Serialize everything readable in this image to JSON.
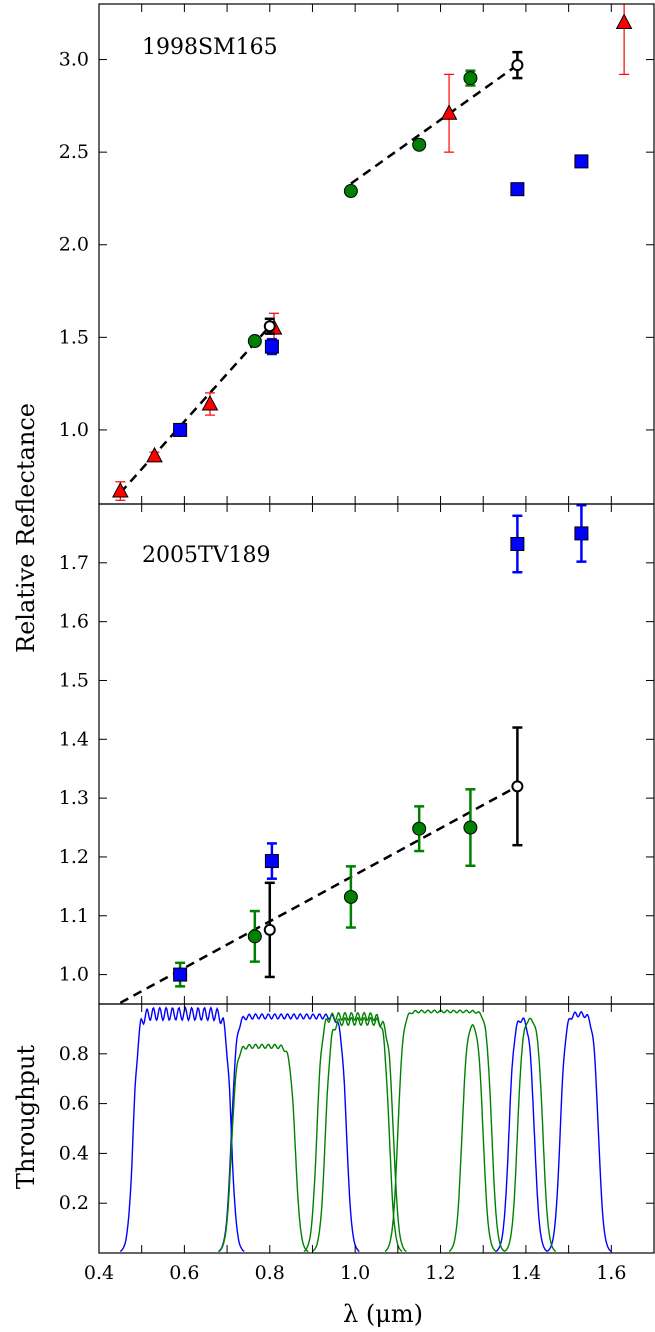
{
  "chart_data": [
    {
      "type": "scatter",
      "panel": "top",
      "label": "1998SM165",
      "xlim": [
        0.4,
        1.7
      ],
      "ylim": [
        0.6,
        3.3
      ],
      "yticks": [
        1.0,
        1.5,
        2.0,
        2.5,
        3.0
      ],
      "ytick_labels": [
        "1.0",
        "1.5",
        "2.0",
        "2.5",
        "3.0"
      ],
      "fit_lines": [
        {
          "x": [
            0.45,
            0.8
          ],
          "y": [
            0.66,
            1.56
          ]
        },
        {
          "x": [
            0.99,
            1.38
          ],
          "y": [
            2.33,
            2.97
          ]
        }
      ],
      "series": [
        {
          "marker": "triangle",
          "color": "#ff0000",
          "points": [
            {
              "x": 0.45,
              "y": 0.67,
              "err": 0.05
            },
            {
              "x": 0.53,
              "y": 0.86,
              "err": 0.02
            },
            {
              "x": 0.66,
              "y": 1.14,
              "err": 0.06
            },
            {
              "x": 0.81,
              "y": 1.55,
              "err": 0.08
            },
            {
              "x": 1.22,
              "y": 2.71,
              "err": 0.21
            },
            {
              "x": 1.63,
              "y": 3.2,
              "err": 0.28
            }
          ]
        },
        {
          "marker": "circle",
          "color": "#008000",
          "points": [
            {
              "x": 0.59,
              "y": 1.0,
              "err": 0.02
            },
            {
              "x": 0.765,
              "y": 1.48,
              "err": 0.02
            },
            {
              "x": 0.99,
              "y": 2.29,
              "err": 0.02
            },
            {
              "x": 1.15,
              "y": 2.54,
              "err": 0.02
            },
            {
              "x": 1.27,
              "y": 2.9,
              "err": 0.04
            }
          ]
        },
        {
          "marker": "square",
          "color": "#0000ff",
          "points": [
            {
              "x": 0.59,
              "y": 1.0,
              "err": 0.0
            },
            {
              "x": 0.805,
              "y": 1.45,
              "err": 0.04
            },
            {
              "x": 1.38,
              "y": 2.3,
              "err": 0.0
            },
            {
              "x": 1.53,
              "y": 2.45,
              "err": 0.0
            }
          ]
        },
        {
          "marker": "open-circle",
          "color": "#000000",
          "points": [
            {
              "x": 0.8,
              "y": 1.56,
              "err": 0.04
            },
            {
              "x": 1.38,
              "y": 2.97,
              "err": 0.07
            }
          ]
        }
      ]
    },
    {
      "type": "scatter",
      "panel": "middle",
      "label": "2005TV189",
      "xlim": [
        0.4,
        1.7
      ],
      "ylim": [
        0.95,
        1.8
      ],
      "yticks": [
        1.0,
        1.1,
        1.2,
        1.3,
        1.4,
        1.5,
        1.6,
        1.7
      ],
      "ytick_labels": [
        "1.0",
        "1.1",
        "1.2",
        "1.3",
        "1.4",
        "1.5",
        "1.6",
        "1.7"
      ],
      "fit_lines": [
        {
          "x": [
            0.45,
            1.38
          ],
          "y": [
            0.952,
            1.32
          ]
        }
      ],
      "series": [
        {
          "marker": "circle",
          "color": "#008000",
          "points": [
            {
              "x": 0.59,
              "y": 1.0,
              "err": 0.02
            },
            {
              "x": 0.765,
              "y": 1.065,
              "err": 0.043
            },
            {
              "x": 0.99,
              "y": 1.132,
              "err": 0.052
            },
            {
              "x": 1.15,
              "y": 1.248,
              "err": 0.038
            },
            {
              "x": 1.27,
              "y": 1.25,
              "err": 0.065
            }
          ]
        },
        {
          "marker": "square",
          "color": "#0000ff",
          "points": [
            {
              "x": 0.59,
              "y": 1.0,
              "err": 0.0
            },
            {
              "x": 0.805,
              "y": 1.193,
              "err": 0.03
            },
            {
              "x": 1.38,
              "y": 1.732,
              "err": 0.048
            },
            {
              "x": 1.53,
              "y": 1.75,
              "err": 0.048
            }
          ]
        },
        {
          "marker": "open-circle",
          "color": "#000000",
          "points": [
            {
              "x": 0.8,
              "y": 1.076,
              "err": 0.08
            },
            {
              "x": 1.38,
              "y": 1.32,
              "err": 0.1
            }
          ]
        }
      ]
    },
    {
      "type": "line",
      "panel": "bottom",
      "ylabel": "Throughput",
      "xlabel": "λ (μm)",
      "xlim": [
        0.4,
        1.7
      ],
      "ylim": [
        0.0,
        1.0
      ],
      "xticks": [
        0.4,
        0.6,
        0.8,
        1.0,
        1.2,
        1.4,
        1.6
      ],
      "xtick_labels": [
        "0.4",
        "0.6",
        "0.8",
        "1.0",
        "1.2",
        "1.4",
        "1.6"
      ],
      "yticks": [
        0.2,
        0.4,
        0.6,
        0.8
      ],
      "ytick_labels": [
        "0.2",
        "0.4",
        "0.6",
        "0.8"
      ],
      "bands": [
        {
          "color": "#0000ff",
          "start": 0.48,
          "end": 0.71,
          "level": 0.96,
          "ripple": 0.025
        },
        {
          "color": "#0000ff",
          "start": 0.71,
          "end": 0.98,
          "level": 0.95,
          "ripple": 0.01
        },
        {
          "color": "#0000ff",
          "start": 1.36,
          "end": 1.42,
          "level": 0.95,
          "ripple": 0.01
        },
        {
          "color": "#0000ff",
          "start": 1.48,
          "end": 1.57,
          "level": 0.96,
          "ripple": 0.01
        },
        {
          "color": "#008000",
          "start": 0.71,
          "end": 0.86,
          "level": 0.83,
          "ripple": 0.008
        },
        {
          "color": "#008000",
          "start": 0.91,
          "end": 1.08,
          "level": 0.95,
          "ripple": 0.015
        },
        {
          "color": "#008000",
          "start": 0.93,
          "end": 1.09,
          "level": 0.93,
          "ripple": 0.015
        },
        {
          "color": "#008000",
          "start": 1.1,
          "end": 1.32,
          "level": 0.97,
          "ripple": 0.005
        },
        {
          "color": "#008000",
          "start": 1.25,
          "end": 1.3,
          "level": 0.94,
          "ripple": 0.005
        },
        {
          "color": "#008000",
          "start": 1.38,
          "end": 1.44,
          "level": 0.95,
          "ripple": 0.005
        }
      ]
    }
  ],
  "figure": {
    "ylabel": "Relative Reflectance"
  }
}
